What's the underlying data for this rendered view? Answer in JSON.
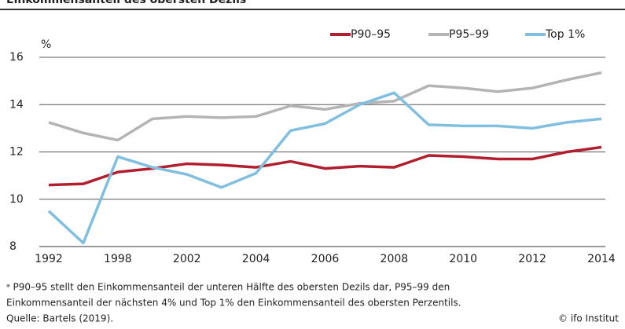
{
  "chart_data": {
    "type": "line",
    "title": "Einkommensanteil des obersten Dezils",
    "y_label": "%",
    "categories": [
      "1992",
      null,
      "1998",
      null,
      "2002",
      null,
      "2004",
      null,
      "2006",
      null,
      "2008",
      null,
      "2010",
      null,
      "2012",
      null,
      "2014"
    ],
    "series": [
      {
        "name": "P90–95",
        "color": "#b11f2e",
        "values": [
          10.6,
          10.65,
          11.15,
          11.3,
          11.5,
          11.45,
          11.35,
          11.6,
          11.3,
          11.4,
          11.35,
          11.85,
          11.8,
          11.7,
          11.7,
          12.0,
          12.2
        ]
      },
      {
        "name": "P95–99",
        "color": "#b4b4b4",
        "values": [
          13.25,
          12.8,
          12.5,
          13.4,
          13.5,
          13.45,
          13.5,
          13.95,
          13.8,
          14.05,
          14.15,
          14.8,
          14.7,
          14.55,
          14.7,
          15.05,
          15.35
        ]
      },
      {
        "name": "Top 1%",
        "color": "#80bfe0",
        "values": [
          9.5,
          8.15,
          11.8,
          11.35,
          11.05,
          10.5,
          11.1,
          12.9,
          13.2,
          14.0,
          14.5,
          13.15,
          13.1,
          13.1,
          13.0,
          13.25,
          13.4
        ]
      }
    ],
    "ylim": [
      8,
      16
    ],
    "yticks": [
      8,
      10,
      12,
      14,
      16
    ],
    "grid": true,
    "legend": "top-right",
    "notes": [
      "ᵃ P90–95 stellt den Einkommensanteil der unteren Hälfte des obersten Dezils dar, P95–99 den",
      "Einkommensanteil der nächsten 4% und Top 1% den Einkommensanteil des obersten Perzentils."
    ],
    "source": "Quelle: Bartels (2019).",
    "credit": "© ifo Institut"
  }
}
